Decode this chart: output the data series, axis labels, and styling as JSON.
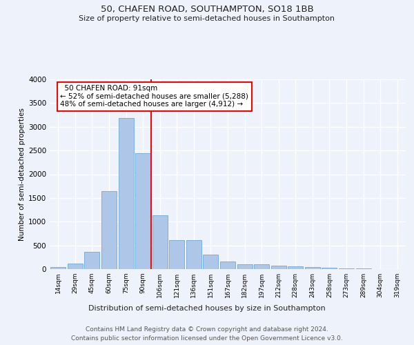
{
  "title": "50, CHAFEN ROAD, SOUTHAMPTON, SO18 1BB",
  "subtitle": "Size of property relative to semi-detached houses in Southampton",
  "xlabel": "Distribution of semi-detached houses by size in Southampton",
  "ylabel": "Number of semi-detached properties",
  "footer_line1": "Contains HM Land Registry data © Crown copyright and database right 2024.",
  "footer_line2": "Contains public sector information licensed under the Open Government Licence v3.0.",
  "annotation_title": "50 CHAFEN ROAD: 91sqm",
  "annotation_line2": "← 52% of semi-detached houses are smaller (5,288)",
  "annotation_line3": "48% of semi-detached houses are larger (4,912) →",
  "bar_color": "#aec6e8",
  "bar_edge_color": "#5a9fd4",
  "marker_color": "red",
  "categories": [
    "14sqm",
    "29sqm",
    "45sqm",
    "60sqm",
    "75sqm",
    "90sqm",
    "106sqm",
    "121sqm",
    "136sqm",
    "151sqm",
    "167sqm",
    "182sqm",
    "197sqm",
    "212sqm",
    "228sqm",
    "243sqm",
    "258sqm",
    "273sqm",
    "289sqm",
    "304sqm",
    "319sqm"
  ],
  "values": [
    50,
    110,
    370,
    1640,
    3180,
    2450,
    1130,
    615,
    615,
    305,
    155,
    95,
    95,
    68,
    58,
    38,
    28,
    18,
    8,
    4,
    4
  ],
  "ylim": [
    0,
    4000
  ],
  "yticks": [
    0,
    500,
    1000,
    1500,
    2000,
    2500,
    3000,
    3500,
    4000
  ],
  "red_line_x": 5.5,
  "background_color": "#eef2fa",
  "grid_color": "#ffffff"
}
